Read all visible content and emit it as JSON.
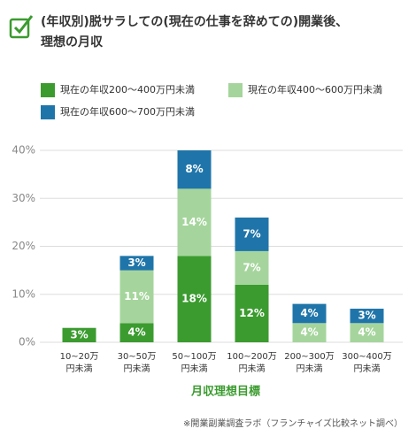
{
  "chart_data": {
    "type": "stacked_bar",
    "title": "(年収別)脱サラしての(現在の仕事を辞めての)開業後、\n理想の月収",
    "categories": [
      "10~20万\n円未満",
      "30~50万\n円未満",
      "50~100万\n円未満",
      "100~200万\n円未満",
      "200~300万\n円未満",
      "300~400万\n円未満"
    ],
    "series": [
      {
        "name": "現在の年収200〜400万円未満",
        "color": "#3b9b2f",
        "values": [
          3,
          4,
          18,
          12,
          null,
          null
        ],
        "value_labels": [
          "3%",
          "4%",
          "18%",
          "12%",
          null,
          null
        ]
      },
      {
        "name": "現在の年収400〜600万円未満",
        "color": "#a5d59c",
        "values": [
          null,
          11,
          14,
          7,
          4,
          4
        ],
        "value_labels": [
          null,
          "11%",
          "14%",
          "7%",
          "4%",
          "4%"
        ]
      },
      {
        "name": "現在の年収600〜700万円未満",
        "color": "#1f75a9",
        "values": [
          null,
          3,
          8,
          7,
          4,
          3
        ],
        "value_labels": [
          null,
          "3%",
          "8%",
          "7%",
          "4%",
          "3%"
        ]
      }
    ],
    "ylim": [
      0,
      40
    ],
    "yticks": [
      {
        "value": 0,
        "label": "0%"
      },
      {
        "value": 10,
        "label": "10%"
      },
      {
        "value": 20,
        "label": "20%"
      },
      {
        "value": 30,
        "label": "30%"
      },
      {
        "value": 40,
        "label": "40%"
      }
    ],
    "grid": true,
    "x_label": "月収理想目標",
    "source": "※開業副業調査ラボ（フランチャイズ比較ネット調べ）"
  }
}
